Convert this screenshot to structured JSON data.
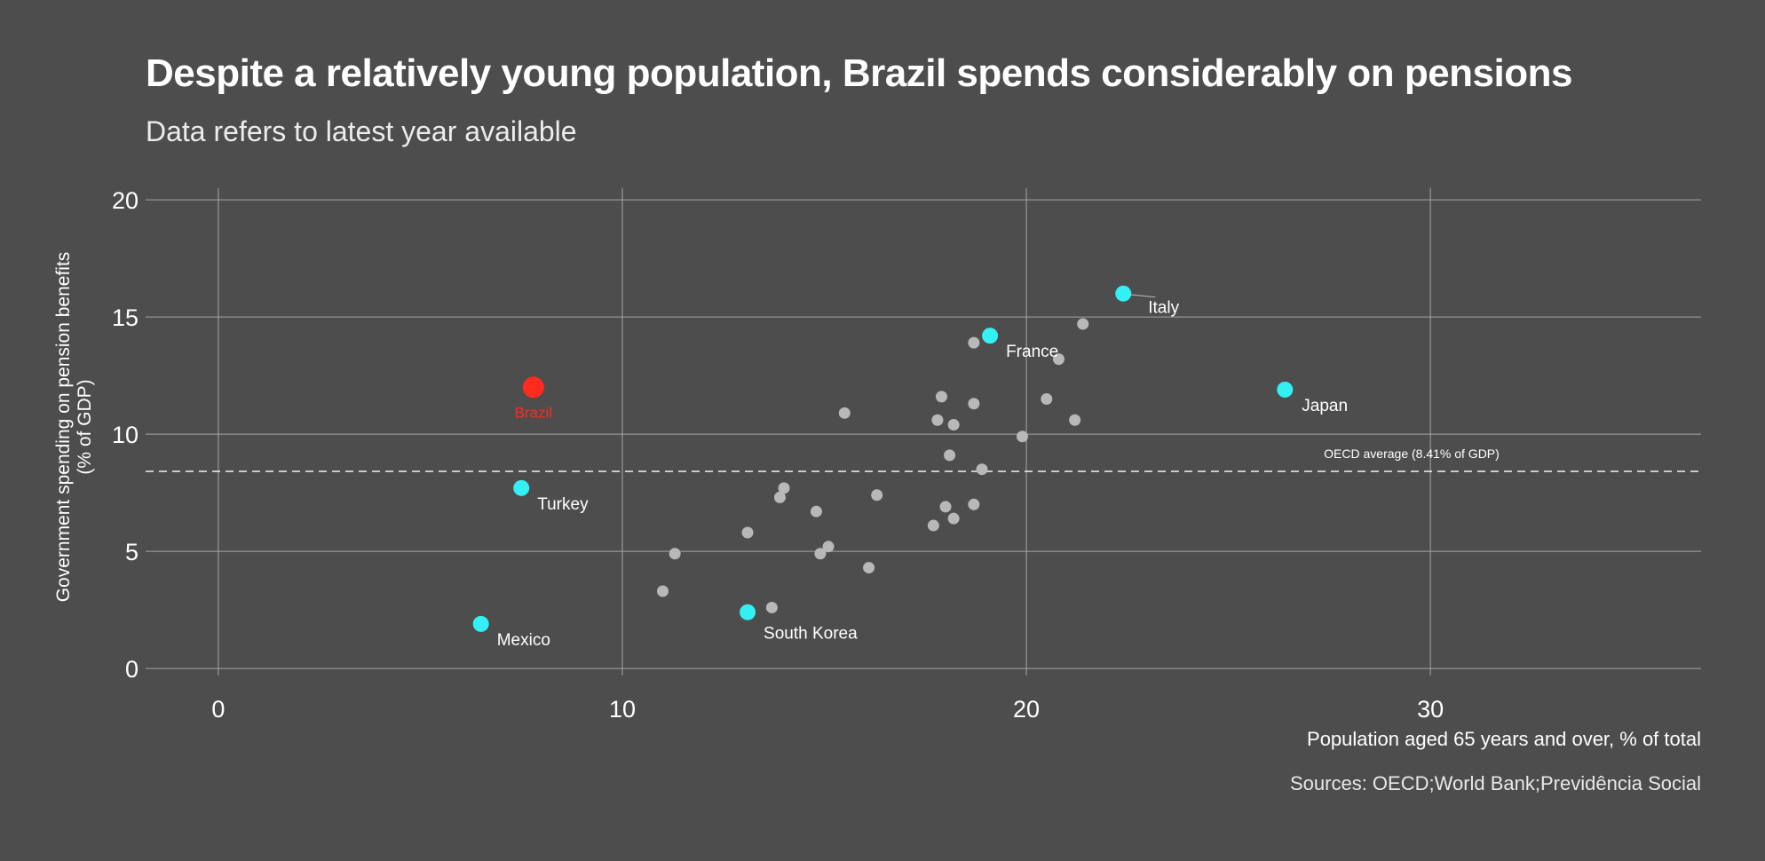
{
  "title": "Despite a relatively young population, Brazil spends considerably on pensions",
  "subtitle": "Data refers to latest year available",
  "source": "Sources: OECD;World Bank;Previdência Social",
  "colors": {
    "background": "#4d4d4d",
    "highlight": "#33f0f5",
    "brazil": "#ff2b1f",
    "other": "#b8b8b8",
    "grid": "#a6a6a6"
  },
  "chart_data": {
    "type": "scatter",
    "title": "Despite a relatively young population, Brazil spends considerably on pensions",
    "subtitle": "Data refers to latest year available",
    "xlabel": "Population aged 65 years and over, % of total",
    "ylabel": "Government spending on pension benefits (% of GDP)",
    "ylabel_lines": [
      "Government spending on pension benefits",
      "(% of GDP)"
    ],
    "xlim": [
      -1.8,
      36.7
    ],
    "ylim": [
      -0.3,
      20.8
    ],
    "xticks": [
      0,
      10,
      20,
      30
    ],
    "yticks": [
      0,
      5,
      10,
      15,
      20
    ],
    "grid": true,
    "reference_line": {
      "y": 8.41,
      "label": "OECD average (8.41% of GDP)"
    },
    "highlighted": [
      {
        "name": "Brazil",
        "x": 7.8,
        "y": 12.0,
        "group": "brazil"
      },
      {
        "name": "Italy",
        "x": 22.4,
        "y": 16.0,
        "group": "highlight"
      },
      {
        "name": "France",
        "x": 19.1,
        "y": 14.2,
        "group": "highlight"
      },
      {
        "name": "Japan",
        "x": 26.4,
        "y": 11.9,
        "group": "highlight"
      },
      {
        "name": "Turkey",
        "x": 7.5,
        "y": 7.7,
        "group": "highlight"
      },
      {
        "name": "Mexico",
        "x": 6.5,
        "y": 1.9,
        "group": "highlight"
      },
      {
        "name": "South Korea",
        "x": 13.1,
        "y": 2.4,
        "group": "highlight"
      }
    ],
    "others": [
      {
        "x": 15.5,
        "y": 10.9
      },
      {
        "x": 11.3,
        "y": 4.9
      },
      {
        "x": 11.0,
        "y": 3.3
      },
      {
        "x": 13.1,
        "y": 5.8
      },
      {
        "x": 13.7,
        "y": 2.6
      },
      {
        "x": 13.9,
        "y": 7.3
      },
      {
        "x": 14.0,
        "y": 7.7
      },
      {
        "x": 14.8,
        "y": 6.7
      },
      {
        "x": 14.9,
        "y": 4.9
      },
      {
        "x": 15.1,
        "y": 5.2
      },
      {
        "x": 16.1,
        "y": 4.3
      },
      {
        "x": 16.3,
        "y": 7.4
      },
      {
        "x": 17.7,
        "y": 6.1
      },
      {
        "x": 17.8,
        "y": 10.6
      },
      {
        "x": 17.9,
        "y": 11.6
      },
      {
        "x": 18.0,
        "y": 6.9
      },
      {
        "x": 18.1,
        "y": 9.1
      },
      {
        "x": 18.2,
        "y": 10.4
      },
      {
        "x": 18.2,
        "y": 6.4
      },
      {
        "x": 18.7,
        "y": 13.9
      },
      {
        "x": 18.7,
        "y": 11.3
      },
      {
        "x": 18.7,
        "y": 7.0
      },
      {
        "x": 18.9,
        "y": 8.5
      },
      {
        "x": 19.9,
        "y": 9.9
      },
      {
        "x": 20.5,
        "y": 11.5
      },
      {
        "x": 20.8,
        "y": 13.2
      },
      {
        "x": 21.2,
        "y": 10.6
      },
      {
        "x": 21.4,
        "y": 14.7
      }
    ]
  }
}
